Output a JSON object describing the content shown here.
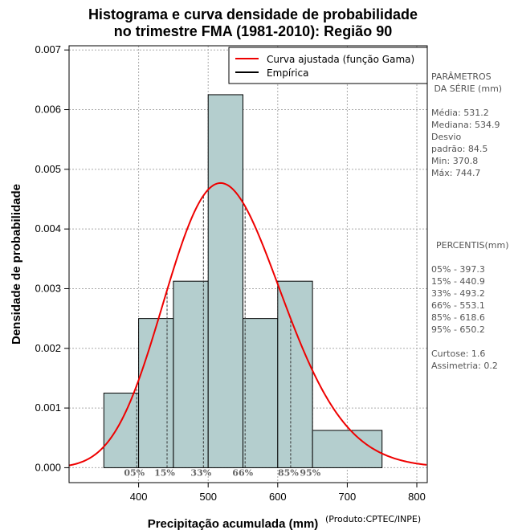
{
  "chart_data": {
    "type": "bar",
    "title_lines": [
      "Histograma e curva densidade de probabilidade",
      "no trimestre FMA (1981-2010): Região 90"
    ],
    "xlabel": "Precipitação acumulada (mm)",
    "ylabel": "Densidade de probabilidade",
    "xlim": [
      300,
      815
    ],
    "ylim": [
      -0.00025,
      0.00707
    ],
    "x_ticks": [
      400,
      500,
      600,
      700,
      800
    ],
    "x_tick_labels": [
      "400",
      "500",
      "600",
      "700",
      "800"
    ],
    "y_ticks": [
      0,
      0.001,
      0.002,
      0.003,
      0.004,
      0.005,
      0.006,
      0.007
    ],
    "y_tick_labels": [
      "0.000",
      "0.001",
      "0.002",
      "0.003",
      "0.004",
      "0.005",
      "0.006",
      "0.007"
    ],
    "grid": true,
    "bins": [
      {
        "x0": 350,
        "x1": 400,
        "density": 0.00125
      },
      {
        "x0": 400,
        "x1": 450,
        "density": 0.0025
      },
      {
        "x0": 450,
        "x1": 500,
        "density": 0.003125
      },
      {
        "x0": 500,
        "x1": 550,
        "density": 0.00625
      },
      {
        "x0": 550,
        "x1": 600,
        "density": 0.0025
      },
      {
        "x0": 600,
        "x1": 650,
        "density": 0.003125
      },
      {
        "x0": 650,
        "x1": 750,
        "density": 0.000625
      }
    ],
    "gamma_fit": {
      "shape": 39.5,
      "scale": 13.45
    },
    "percentile_markers": [
      {
        "label": "05%",
        "x": 397.3
      },
      {
        "label": "15%",
        "x": 440.9
      },
      {
        "label": "33%",
        "x": 493.2
      },
      {
        "label": "66%",
        "x": 553.1
      },
      {
        "label": "85%",
        "x": 618.6
      },
      {
        "label": "95%",
        "x": 650.2
      }
    ],
    "legend": {
      "position": "top-right",
      "entries": [
        {
          "label": "Curva ajustada (função Gama)",
          "color": "#ee0000"
        },
        {
          "label": "Empírica",
          "color": "#000000"
        }
      ]
    },
    "colors": {
      "bar_fill": "#b4cece",
      "curve": "#ee0000",
      "grid": "#aaaaaa",
      "percentile_text": "#666666"
    }
  },
  "side_panel": {
    "params_title": [
      "PARÂMETROS",
      " DA SÉRIE (mm)"
    ],
    "params": [
      "Média:  531.2",
      "Mediana:  534.9",
      "Desvio",
      "padrão:  84.5",
      "Min:  370.8",
      "Máx:  744.7"
    ],
    "percentis_title": "PERCENTIS(mm)",
    "percentis": [
      "05% -  397.3",
      "15% -  440.9",
      "33% -  493.2",
      "66% -  553.1",
      "85% -  618.6",
      "95% -  650.2"
    ],
    "stats": [
      "Curtose:  1.6",
      "Assimetria:  0.2"
    ]
  },
  "product_note": "(Produto:CPTEC/INPE)"
}
